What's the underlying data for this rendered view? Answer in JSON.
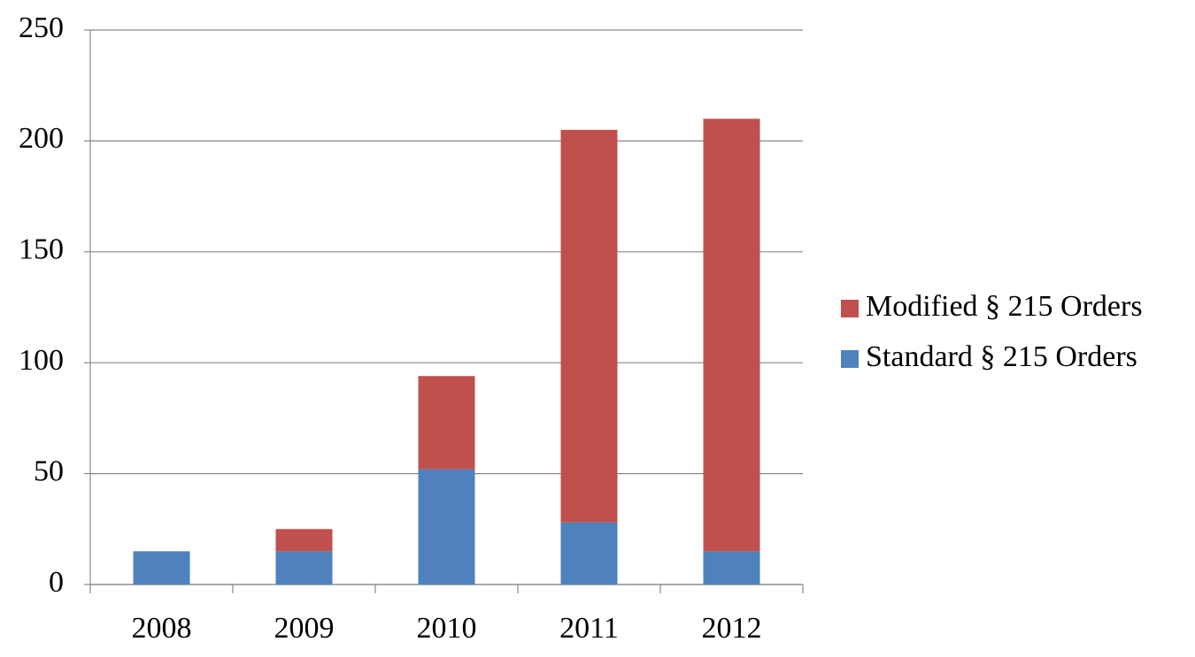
{
  "chart_data": {
    "type": "stacked_bar",
    "categories": [
      "2008",
      "2009",
      "2010",
      "2011",
      "2012"
    ],
    "series": [
      {
        "name": "Standard § 215 Orders",
        "color": "#4f81bd",
        "values": [
          15,
          15,
          52,
          28,
          15
        ]
      },
      {
        "name": "Modified § 215 Orders",
        "color": "#c0504d",
        "values": [
          0,
          10,
          42,
          177,
          195
        ]
      }
    ],
    "ylim": [
      0,
      250
    ],
    "yticks": [
      0,
      50,
      100,
      150,
      200,
      250
    ],
    "grid": true,
    "legend": "right"
  }
}
